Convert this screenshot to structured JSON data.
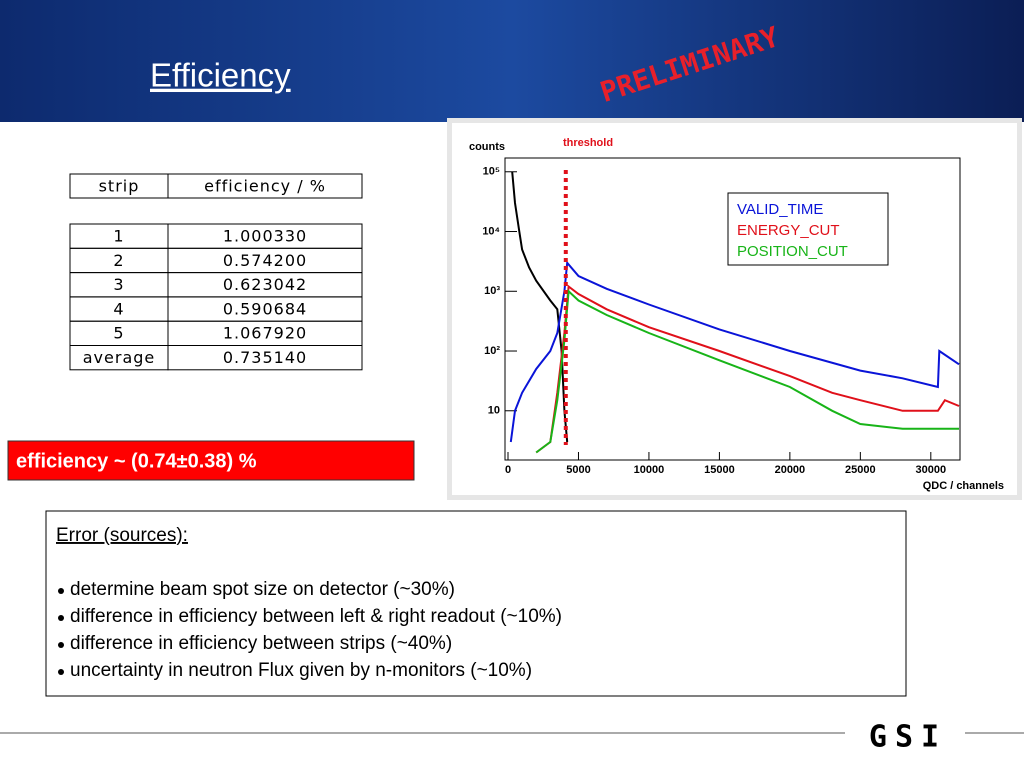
{
  "header": {
    "title": "Efficiency",
    "stamp": "PRELIMINARY"
  },
  "table": {
    "header": [
      "strip",
      "efficiency / %"
    ],
    "rows": [
      [
        "1",
        "1.000330"
      ],
      [
        "2",
        "0.574200"
      ],
      [
        "3",
        "0.623042"
      ],
      [
        "4",
        "0.590684"
      ],
      [
        "5",
        "1.067920"
      ],
      [
        "average",
        "0.735140"
      ]
    ]
  },
  "result": "efficiency ~ (0.74±0.38) %",
  "errors": {
    "title": "Error (sources):",
    "items": [
      "determine beam spot size on detector (~30%)",
      "difference in efficiency between left & right readout (~10%)",
      "difference in efficiency between strips (~40%)",
      "uncertainty in neutron Flux given by n-monitors (~10%)"
    ]
  },
  "logo": "GSI",
  "chart_data": {
    "type": "line",
    "y_label": "counts",
    "x_label": "QDC / channels",
    "annotation": {
      "text": "threshold",
      "x": 4100,
      "color": "#e0101a"
    },
    "xlim": [
      0,
      32000
    ],
    "xticks": [
      0,
      5000,
      10000,
      15000,
      20000,
      25000,
      30000
    ],
    "ylim": [
      1.5,
      170000
    ],
    "yticks": [
      10,
      {
        "value": 100,
        "label": "10²"
      },
      {
        "value": 1000,
        "label": "10³"
      },
      {
        "value": 10000,
        "label": "10⁴"
      },
      {
        "value": 100000,
        "label": "10⁵"
      }
    ],
    "log_y": true,
    "grid": false,
    "legend": "top-right",
    "series": [
      {
        "color": "#000000",
        "x": [
          300,
          500,
          800,
          1000,
          1500,
          2000,
          3000,
          3500,
          3800,
          4000,
          4200
        ],
        "values": [
          100000,
          30000,
          10000,
          5000,
          2500,
          1500,
          700,
          500,
          100,
          10,
          3
        ]
      },
      {
        "name": "VALID_TIME",
        "color": "#0a14d8",
        "x": [
          200,
          500,
          1000,
          2000,
          3000,
          3500,
          4000,
          4200,
          5000,
          7000,
          10000,
          15000,
          20000,
          25000,
          28000,
          30500,
          30600,
          32000
        ],
        "values": [
          3,
          10,
          20,
          50,
          100,
          200,
          1000,
          3000,
          1800,
          1100,
          600,
          230,
          100,
          47,
          35,
          25,
          100,
          60
        ]
      },
      {
        "name": "ENERGY_CUT",
        "color": "#e0101a",
        "x": [
          2000,
          3000,
          3500,
          4000,
          4300,
          5000,
          7000,
          10000,
          15000,
          20000,
          23000,
          25000,
          28000,
          30500,
          31000,
          32000
        ],
        "values": [
          2,
          3,
          20,
          200,
          1200,
          900,
          500,
          250,
          100,
          38,
          20,
          15,
          10,
          10,
          15,
          12
        ]
      },
      {
        "name": "POSITION_CUT",
        "color": "#18b418",
        "x": [
          2000,
          3000,
          3500,
          4000,
          4300,
          5000,
          7000,
          10000,
          15000,
          20000,
          23000,
          25000,
          28000,
          32000
        ],
        "values": [
          2,
          3,
          15,
          150,
          1000,
          700,
          400,
          200,
          70,
          25,
          10,
          6,
          5,
          5
        ]
      }
    ]
  }
}
